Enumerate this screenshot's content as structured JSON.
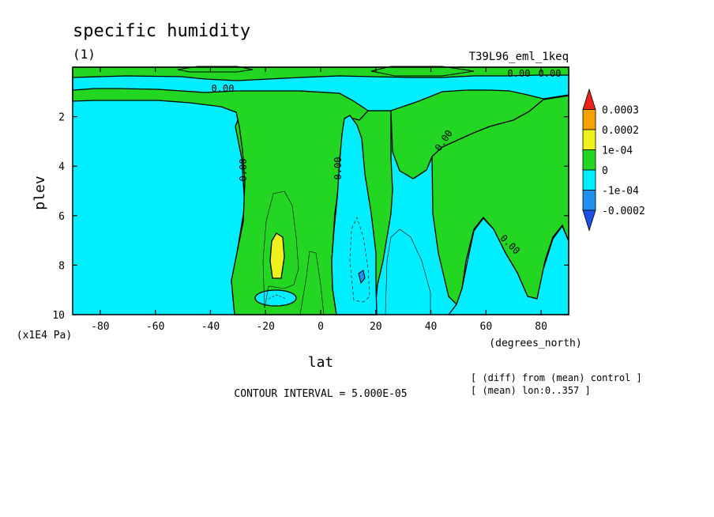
{
  "chart_data": {
    "type": "heatmap",
    "title": "specific humidity",
    "subtitle_left": "(1)",
    "subtitle_right": "T39L96_eml_1keq",
    "xlabel": "lat",
    "ylabel": "plev",
    "x_unit": "(degrees_north)",
    "y_unit": "(x1E4 Pa)",
    "xlim": [
      -90,
      90
    ],
    "ylim": [
      10,
      0
    ],
    "y_reversed": true,
    "x_ticks": [
      "-80",
      "-60",
      "-40",
      "-20",
      "0",
      "20",
      "40",
      "60",
      "80"
    ],
    "y_ticks": [
      "2",
      "4",
      "6",
      "8",
      "10"
    ],
    "contour_interval_text": "CONTOUR INTERVAL = 5.000E-05",
    "notes": [
      "[ (diff) from (mean) control ]",
      "[ (mean) lon:0..357 ]"
    ],
    "contour_labels": [
      "0.00",
      "0.00",
      "0.00",
      "0.00",
      "0.00",
      "0.00",
      "0.00"
    ],
    "colorbar": {
      "labels": [
        "0.0003",
        "0.0002",
        "1e-04",
        "0",
        "-1e-04",
        "-0.0002"
      ],
      "colors": [
        "#e8231c",
        "#f5a100",
        "#f0f01e",
        "#22d622",
        "#00eeff",
        "#1e90f0",
        "#1e50e6"
      ]
    },
    "regions": {
      "positive_0_to_1e-4": "#22d622",
      "negative_-1e-4_to_0": "#00eeff",
      "positive_1e-4_to_2e-4": "#f0f01e",
      "negative_-2e-4_to_-1e-4": "#1e90f0"
    }
  }
}
